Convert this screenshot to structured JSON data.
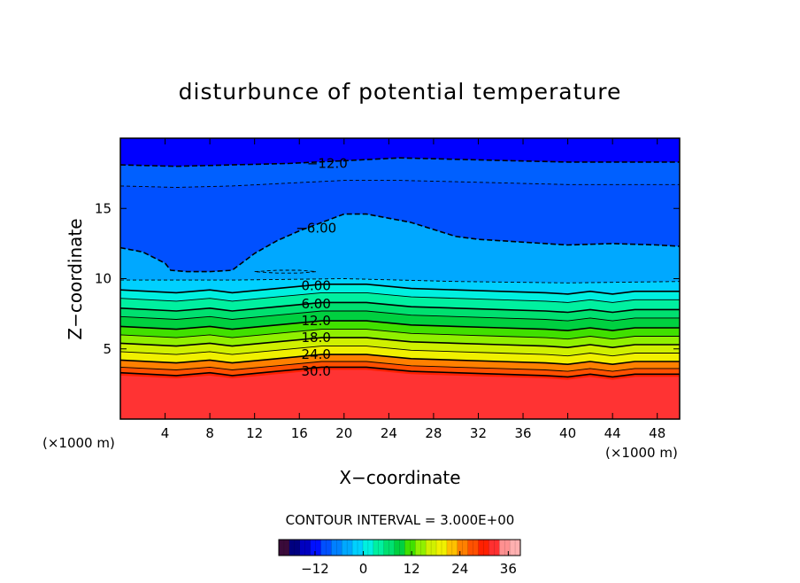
{
  "chart_data": {
    "type": "contour",
    "title": "disturbunce of potential temperature",
    "xlabel": "X−coordinate",
    "ylabel": "Z−coordinate",
    "x_unit_left": "(×1000 m)",
    "x_unit_right": "(×1000 m)",
    "xlim": [
      0,
      50
    ],
    "ylim": [
      0,
      20
    ],
    "x_ticks": [
      4,
      8,
      12,
      16,
      20,
      24,
      28,
      32,
      36,
      40,
      44,
      48
    ],
    "y_ticks": [
      5,
      10,
      15
    ],
    "contour_interval_text": "CONTOUR INTERVAL = 3.000E+00",
    "colorbar": {
      "min": -21,
      "max": 39,
      "ticks": [
        -12,
        0,
        12,
        24,
        36
      ],
      "tick_labels": [
        "−12",
        "0",
        "12",
        "24",
        "36"
      ]
    },
    "contour_labels": [
      {
        "text": "−12.0",
        "x": 18.5,
        "z": 18.2
      },
      {
        "text": "−6.00",
        "x": 17.5,
        "z": 13.6
      },
      {
        "text": "0.00",
        "x": 17.5,
        "z": 9.5
      },
      {
        "text": "6.00",
        "x": 17.5,
        "z": 8.2
      },
      {
        "text": "12.0",
        "x": 17.5,
        "z": 7.0
      },
      {
        "text": "18.0",
        "x": 17.5,
        "z": 5.8
      },
      {
        "text": "24.0",
        "x": 17.5,
        "z": 4.6
      },
      {
        "text": "30.0",
        "x": 17.5,
        "z": 3.4
      }
    ],
    "contours": [
      {
        "level": -12,
        "labeled": true,
        "z": [
          [
            0,
            18.1
          ],
          [
            5,
            18.0
          ],
          [
            10,
            18.1
          ],
          [
            15,
            18.2
          ],
          [
            20,
            18.4
          ],
          [
            25,
            18.6
          ],
          [
            30,
            18.5
          ],
          [
            35,
            18.4
          ],
          [
            40,
            18.3
          ],
          [
            45,
            18.3
          ],
          [
            50,
            18.3
          ]
        ]
      },
      {
        "level": -9,
        "labeled": false,
        "z": [
          [
            0,
            16.6
          ],
          [
            5,
            16.5
          ],
          [
            10,
            16.6
          ],
          [
            15,
            16.8
          ],
          [
            20,
            17.0
          ],
          [
            25,
            17.0
          ],
          [
            30,
            16.9
          ],
          [
            35,
            16.8
          ],
          [
            40,
            16.7
          ],
          [
            45,
            16.7
          ],
          [
            50,
            16.7
          ]
        ]
      },
      {
        "level": -6,
        "labeled": true,
        "z": [
          [
            0,
            12.2
          ],
          [
            2,
            11.9
          ],
          [
            4,
            11.1
          ],
          [
            4.5,
            10.6
          ],
          [
            6,
            10.5
          ],
          [
            8,
            10.5
          ],
          [
            10,
            10.6
          ],
          [
            12,
            11.8
          ],
          [
            14,
            12.7
          ],
          [
            16,
            13.4
          ],
          [
            18,
            14.0
          ],
          [
            20,
            14.6
          ],
          [
            22,
            14.6
          ],
          [
            24,
            14.3
          ],
          [
            26,
            14.0
          ],
          [
            28,
            13.5
          ],
          [
            30,
            13.0
          ],
          [
            32,
            12.8
          ],
          [
            36,
            12.6
          ],
          [
            40,
            12.4
          ],
          [
            44,
            12.5
          ],
          [
            48,
            12.4
          ],
          [
            50,
            12.3
          ]
        ]
      },
      {
        "level": -3,
        "labeled": false,
        "z": [
          [
            0,
            9.9
          ],
          [
            10,
            9.9
          ],
          [
            20,
            10.0
          ],
          [
            30,
            9.8
          ],
          [
            40,
            9.7
          ],
          [
            50,
            9.8
          ]
        ]
      },
      {
        "level": -3,
        "labeled": false,
        "z": [
          [
            12,
            10.5
          ],
          [
            14,
            10.6
          ],
          [
            16,
            10.6
          ],
          [
            17.5,
            10.5
          ],
          [
            16,
            10.4
          ],
          [
            14,
            10.4
          ],
          [
            12,
            10.5
          ]
        ]
      },
      {
        "level": 0,
        "labeled": true,
        "z": [
          [
            0,
            9.2
          ],
          [
            5,
            9.0
          ],
          [
            8,
            9.2
          ],
          [
            10,
            9.0
          ],
          [
            14,
            9.3
          ],
          [
            18,
            9.6
          ],
          [
            22,
            9.6
          ],
          [
            26,
            9.3
          ],
          [
            30,
            9.2
          ],
          [
            34,
            9.1
          ],
          [
            38,
            9.0
          ],
          [
            40,
            8.9
          ],
          [
            42,
            9.1
          ],
          [
            44,
            8.9
          ],
          [
            46,
            9.1
          ],
          [
            50,
            9.1
          ]
        ]
      },
      {
        "level": 3,
        "labeled": false,
        "z": [
          [
            0,
            8.6
          ],
          [
            5,
            8.4
          ],
          [
            8,
            8.6
          ],
          [
            10,
            8.4
          ],
          [
            14,
            8.7
          ],
          [
            18,
            9.0
          ],
          [
            22,
            9.0
          ],
          [
            26,
            8.7
          ],
          [
            30,
            8.6
          ],
          [
            34,
            8.5
          ],
          [
            38,
            8.4
          ],
          [
            40,
            8.3
          ],
          [
            42,
            8.5
          ],
          [
            44,
            8.3
          ],
          [
            46,
            8.5
          ],
          [
            50,
            8.5
          ]
        ]
      },
      {
        "level": 6,
        "labeled": true,
        "z": [
          [
            0,
            7.9
          ],
          [
            5,
            7.7
          ],
          [
            8,
            7.9
          ],
          [
            10,
            7.7
          ],
          [
            14,
            8.0
          ],
          [
            18,
            8.3
          ],
          [
            22,
            8.3
          ],
          [
            26,
            8.0
          ],
          [
            30,
            7.9
          ],
          [
            34,
            7.8
          ],
          [
            38,
            7.7
          ],
          [
            40,
            7.6
          ],
          [
            42,
            7.8
          ],
          [
            44,
            7.6
          ],
          [
            46,
            7.8
          ],
          [
            50,
            7.8
          ]
        ]
      },
      {
        "level": 9,
        "labeled": false,
        "z": [
          [
            0,
            7.3
          ],
          [
            5,
            7.1
          ],
          [
            8,
            7.3
          ],
          [
            10,
            7.1
          ],
          [
            14,
            7.4
          ],
          [
            18,
            7.7
          ],
          [
            22,
            7.7
          ],
          [
            26,
            7.4
          ],
          [
            30,
            7.3
          ],
          [
            34,
            7.2
          ],
          [
            38,
            7.1
          ],
          [
            40,
            7.0
          ],
          [
            42,
            7.2
          ],
          [
            44,
            7.0
          ],
          [
            46,
            7.2
          ],
          [
            50,
            7.2
          ]
        ]
      },
      {
        "level": 12,
        "labeled": true,
        "z": [
          [
            0,
            6.6
          ],
          [
            5,
            6.4
          ],
          [
            8,
            6.6
          ],
          [
            10,
            6.4
          ],
          [
            14,
            6.7
          ],
          [
            18,
            7.0
          ],
          [
            22,
            7.0
          ],
          [
            26,
            6.7
          ],
          [
            30,
            6.6
          ],
          [
            34,
            6.5
          ],
          [
            38,
            6.4
          ],
          [
            40,
            6.3
          ],
          [
            42,
            6.5
          ],
          [
            44,
            6.3
          ],
          [
            46,
            6.5
          ],
          [
            50,
            6.5
          ]
        ]
      },
      {
        "level": 15,
        "labeled": false,
        "z": [
          [
            0,
            6.0
          ],
          [
            5,
            5.8
          ],
          [
            8,
            6.0
          ],
          [
            10,
            5.8
          ],
          [
            14,
            6.1
          ],
          [
            18,
            6.4
          ],
          [
            22,
            6.4
          ],
          [
            26,
            6.1
          ],
          [
            30,
            6.0
          ],
          [
            34,
            5.9
          ],
          [
            38,
            5.8
          ],
          [
            40,
            5.7
          ],
          [
            42,
            5.9
          ],
          [
            44,
            5.7
          ],
          [
            46,
            5.9
          ],
          [
            50,
            5.9
          ]
        ]
      },
      {
        "level": 18,
        "labeled": true,
        "z": [
          [
            0,
            5.4
          ],
          [
            5,
            5.2
          ],
          [
            8,
            5.4
          ],
          [
            10,
            5.2
          ],
          [
            14,
            5.5
          ],
          [
            18,
            5.8
          ],
          [
            22,
            5.8
          ],
          [
            26,
            5.5
          ],
          [
            30,
            5.4
          ],
          [
            34,
            5.3
          ],
          [
            38,
            5.2
          ],
          [
            40,
            5.1
          ],
          [
            42,
            5.3
          ],
          [
            44,
            5.1
          ],
          [
            46,
            5.3
          ],
          [
            50,
            5.3
          ]
        ]
      },
      {
        "level": 21,
        "labeled": false,
        "z": [
          [
            0,
            4.8
          ],
          [
            5,
            4.6
          ],
          [
            8,
            4.8
          ],
          [
            10,
            4.6
          ],
          [
            14,
            4.9
          ],
          [
            18,
            5.2
          ],
          [
            22,
            5.2
          ],
          [
            26,
            4.9
          ],
          [
            30,
            4.8
          ],
          [
            34,
            4.7
          ],
          [
            38,
            4.6
          ],
          [
            40,
            4.5
          ],
          [
            42,
            4.7
          ],
          [
            44,
            4.5
          ],
          [
            46,
            4.7
          ],
          [
            50,
            4.7
          ]
        ]
      },
      {
        "level": 24,
        "labeled": true,
        "z": [
          [
            0,
            4.2
          ],
          [
            5,
            4.0
          ],
          [
            8,
            4.2
          ],
          [
            10,
            4.0
          ],
          [
            14,
            4.3
          ],
          [
            18,
            4.6
          ],
          [
            22,
            4.6
          ],
          [
            26,
            4.3
          ],
          [
            30,
            4.2
          ],
          [
            34,
            4.1
          ],
          [
            38,
            4.0
          ],
          [
            40,
            3.9
          ],
          [
            42,
            4.1
          ],
          [
            44,
            3.9
          ],
          [
            46,
            4.1
          ],
          [
            50,
            4.1
          ]
        ]
      },
      {
        "level": 27,
        "labeled": false,
        "z": [
          [
            0,
            3.7
          ],
          [
            5,
            3.5
          ],
          [
            8,
            3.7
          ],
          [
            10,
            3.5
          ],
          [
            14,
            3.8
          ],
          [
            18,
            4.1
          ],
          [
            22,
            4.1
          ],
          [
            26,
            3.8
          ],
          [
            30,
            3.7
          ],
          [
            34,
            3.6
          ],
          [
            38,
            3.5
          ],
          [
            40,
            3.4
          ],
          [
            42,
            3.6
          ],
          [
            44,
            3.4
          ],
          [
            46,
            3.6
          ],
          [
            50,
            3.6
          ]
        ]
      },
      {
        "level": 30,
        "labeled": true,
        "z": [
          [
            0,
            3.3
          ],
          [
            5,
            3.1
          ],
          [
            8,
            3.3
          ],
          [
            10,
            3.1
          ],
          [
            14,
            3.4
          ],
          [
            18,
            3.7
          ],
          [
            22,
            3.7
          ],
          [
            26,
            3.4
          ],
          [
            30,
            3.3
          ],
          [
            34,
            3.2
          ],
          [
            38,
            3.1
          ],
          [
            40,
            3.0
          ],
          [
            42,
            3.2
          ],
          [
            44,
            3.0
          ],
          [
            46,
            3.2
          ],
          [
            50,
            3.2
          ]
        ]
      }
    ],
    "palette": [
      "#3a0a3a",
      "#000080",
      "#0000c0",
      "#0010ff",
      "#0050ff",
      "#0080ff",
      "#00a8ff",
      "#00d0ff",
      "#00f0e0",
      "#00f0a0",
      "#00e070",
      "#00d040",
      "#40e000",
      "#90f000",
      "#d0f000",
      "#f0f000",
      "#ffc000",
      "#ff8000",
      "#ff5000",
      "#ff2000",
      "#ff3030",
      "#ff9090",
      "#ffb0b0"
    ],
    "field_colors": {
      "top": "#0000ff",
      "upper": "#0060ff",
      "mid": "#00a8ff",
      "surface": "#ff3333"
    }
  }
}
